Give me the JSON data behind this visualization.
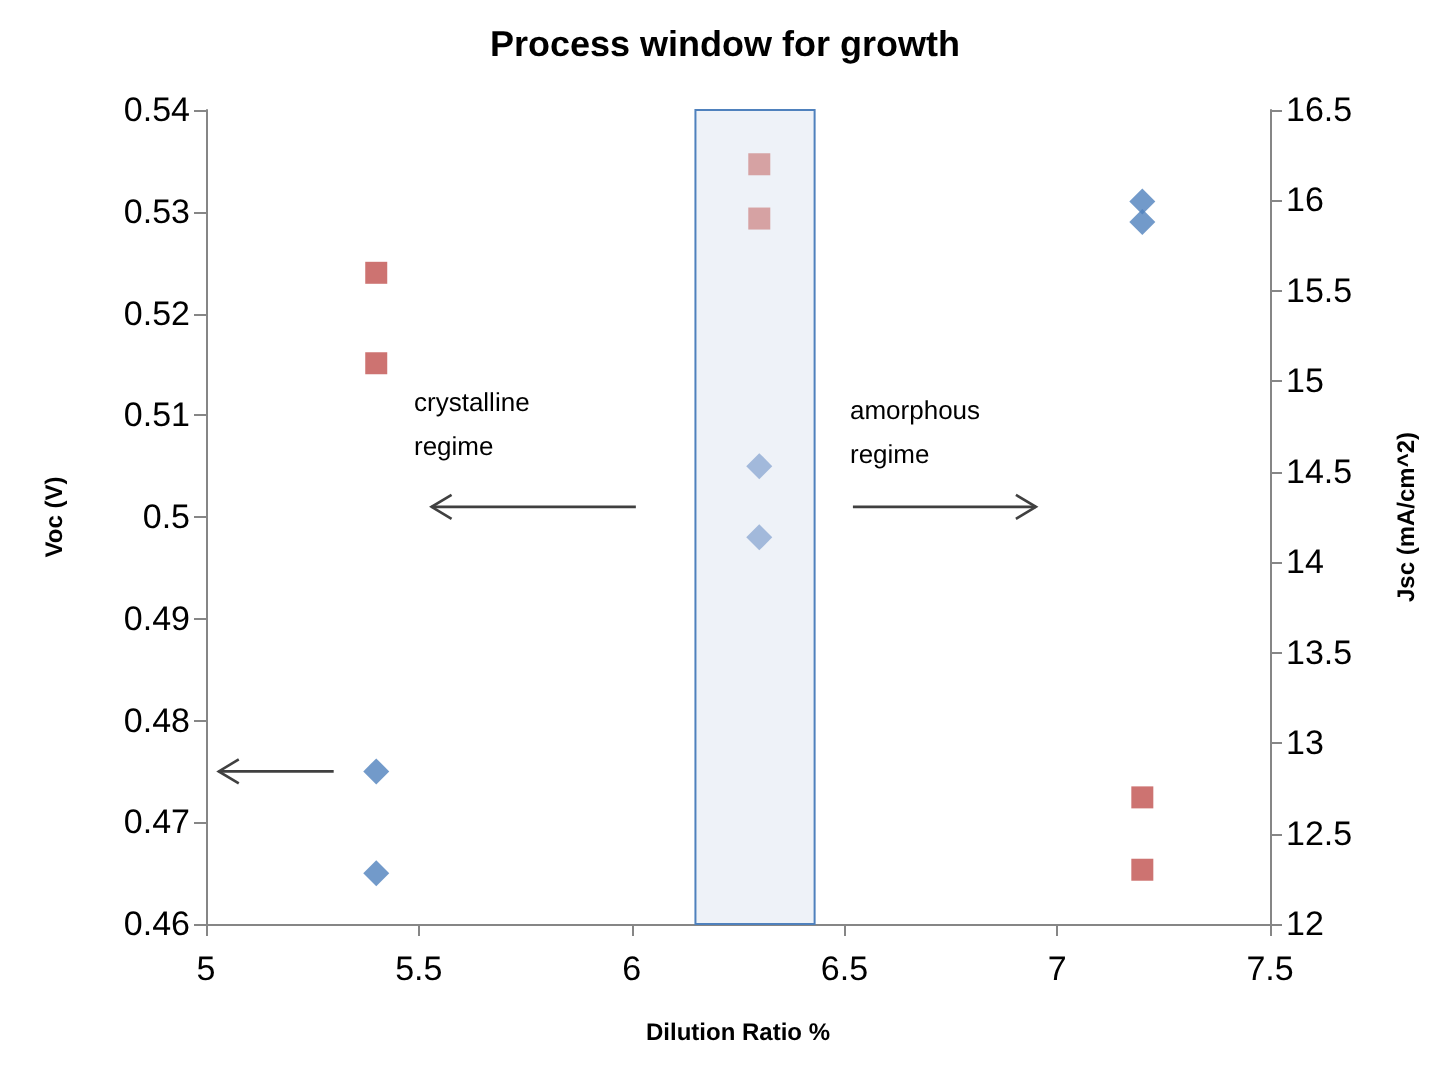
{
  "chart_data": {
    "type": "scatter",
    "title": "Process window for growth",
    "xlabel": "Dilution Ratio %",
    "ylabel": "Voc (V)",
    "y2label": "Jsc (mA/cm^2)",
    "annotations": [
      "crystalline regime",
      "amorphous regime"
    ],
    "series": [
      {
        "marker": "diamond",
        "x": [
          5.4,
          5.4,
          6.3,
          6.3,
          7.2,
          7.2
        ],
        "values": [
          0.475,
          0.465,
          0.505,
          0.498,
          0.531,
          0.529
        ],
        "colors": [
          "#4f81bd",
          "#4f81bd",
          "#8eaad3",
          "#8eaad3",
          "#4f81bd",
          "#4f81bd"
        ]
      },
      {
        "marker": "square",
        "axis": "y2",
        "x": [
          5.4,
          5.4,
          6.3,
          6.3,
          7.2,
          7.2
        ],
        "values": [
          15.6,
          15.1,
          16.2,
          15.9,
          12.7,
          12.3
        ],
        "colors": [
          "#c0504d",
          "#c0504d",
          "#d08d8d",
          "#d08d8d",
          "#c0504d",
          "#c0504d"
        ]
      }
    ],
    "bands": [
      {
        "axis": "x",
        "from": 6.15,
        "to": 6.43,
        "color": "#eef2f8"
      }
    ],
    "xlim": [
      5,
      7.5
    ],
    "xticks": [
      5,
      5.5,
      6,
      6.5,
      7,
      7.5
    ],
    "ylim": [
      0.46,
      0.54
    ],
    "yticks": [
      0.46,
      0.47,
      0.48,
      0.49,
      0.5,
      0.51,
      0.52,
      0.53,
      0.54
    ],
    "y2lim": [
      12,
      16.5
    ],
    "y2ticks": [
      12,
      12.5,
      13,
      13.5,
      14,
      14.5,
      15,
      15.5,
      16,
      16.5
    ],
    "grid": false
  }
}
